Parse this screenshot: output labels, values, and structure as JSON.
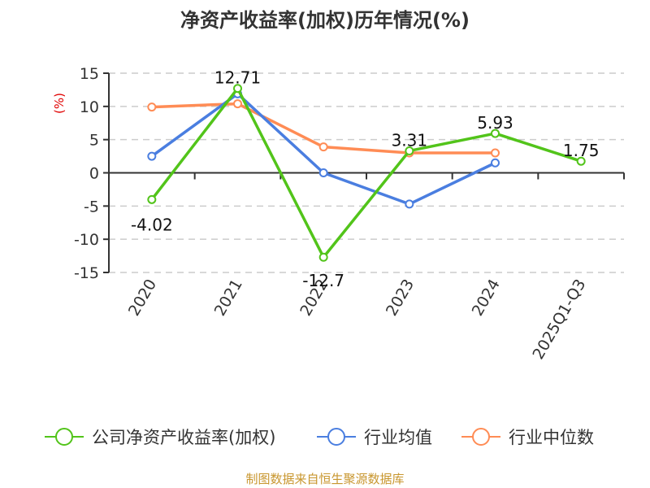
{
  "title": "净资产收益率(加权)历年情况(%)",
  "source": "制图数据来自恒生聚源数据库",
  "colors": {
    "company": "#52c41a",
    "industry_avg": "#4a7ee0",
    "industry_median": "#ff8c55",
    "unit": "#e00000",
    "source": "#c8962e",
    "grid": "#cccccc",
    "axis": "#333333"
  },
  "chart_data": {
    "type": "line",
    "title": "净资产收益率(加权)历年情况(%)",
    "xlabel": "",
    "ylabel": "(%)",
    "ylim": [
      -15,
      15
    ],
    "yticks": [
      15,
      10,
      5,
      0,
      -5,
      -10,
      -15
    ],
    "grid": true,
    "legend_position": "bottom",
    "categories": [
      "2020",
      "2021",
      "2022",
      "2023",
      "2024",
      "2025Q1-Q3"
    ],
    "series": [
      {
        "name": "公司净资产收益率(加权)",
        "key": "company",
        "values": [
          -4.02,
          12.71,
          -12.7,
          3.31,
          5.93,
          1.75
        ],
        "labels": [
          "-4.02",
          "12.71",
          "-12.7",
          "3.31",
          "5.93",
          "1.75"
        ]
      },
      {
        "name": "行业均值",
        "key": "industry_avg",
        "values": [
          2.5,
          11.9,
          0.0,
          -4.7,
          1.5,
          null
        ]
      },
      {
        "name": "行业中位数",
        "key": "industry_median",
        "values": [
          9.9,
          10.4,
          3.9,
          3.0,
          3.0,
          null
        ]
      }
    ]
  },
  "legend": [
    {
      "label": "公司净资产收益率(加权)",
      "key": "company"
    },
    {
      "label": "行业均值",
      "key": "industry_avg"
    },
    {
      "label": "行业中位数",
      "key": "industry_median"
    }
  ]
}
